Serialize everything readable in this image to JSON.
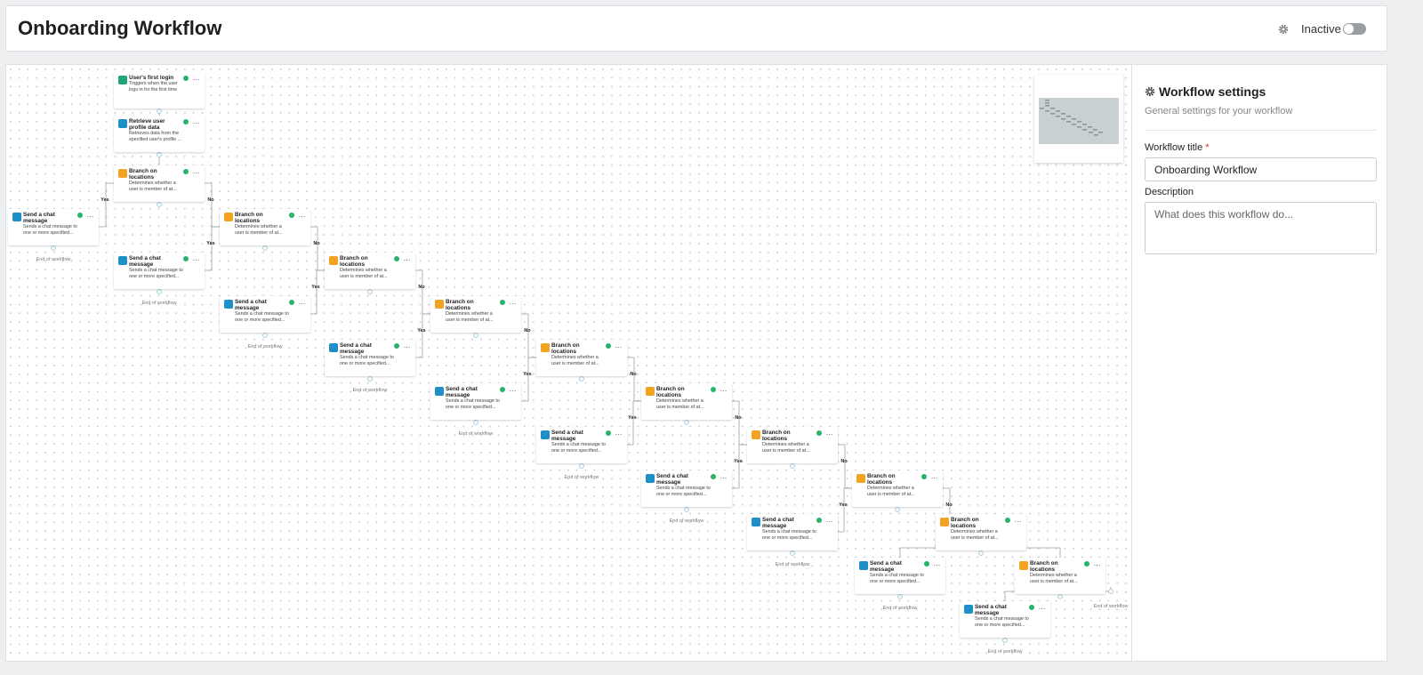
{
  "header": {
    "title": "Onboarding Workflow",
    "status": "Inactive"
  },
  "nodes": [
    {
      "title": "User's first login",
      "description": "Triggers when the user logs in for the first time"
    },
    {
      "title": "Retrieve user profile data",
      "description": "Retrieves data from the specified user's profile ..."
    },
    {
      "title": "Branch on locations",
      "description": "Determines whether a user is member of at..."
    },
    {
      "title": "Send a chat message",
      "description": "Sends a chat message to one or more specified..."
    },
    {
      "title": "Branch on locations",
      "description": "Determines whether a user is member of at..."
    },
    {
      "title": "Send a chat message",
      "description": "Sends a chat message to one or more specified..."
    },
    {
      "title": "Branch on locations",
      "description": "Determines whether a user is member of at..."
    },
    {
      "title": "Send a chat message",
      "description": "Sends a chat message to one or more specified..."
    },
    {
      "title": "Branch on locations",
      "description": "Determines whether a user is member of at..."
    },
    {
      "title": "Send a chat message",
      "description": "Sends a chat message to one or more specified..."
    },
    {
      "title": "Branch on locations",
      "description": "Determines whether a user is member of at..."
    },
    {
      "title": "Send a chat message",
      "description": "Sends a chat message to one or more specified..."
    },
    {
      "title": "Branch on locations",
      "description": "Determines whether a user is member of at..."
    },
    {
      "title": "Send a chat message",
      "description": "Sends a chat message to one or more specified..."
    },
    {
      "title": "Branch on locations",
      "description": "Determines whether a user is member of at..."
    },
    {
      "title": "Send a chat message",
      "description": "Sends a chat message to one or more specified..."
    },
    {
      "title": "Branch on locations",
      "description": "Determines whether a user is member of at..."
    },
    {
      "title": "Send a chat message",
      "description": "Sends a chat message to one or more specified..."
    },
    {
      "title": "Branch on locations",
      "description": "Determines whether a user is member of at..."
    },
    {
      "title": "Send a chat message",
      "description": "Sends a chat message to one or more specified..."
    },
    {
      "title": "Branch on locations",
      "description": "Determines whether a user is member of at..."
    },
    {
      "title": "Send a chat message",
      "description": "Sends a chat message to one or more specified..."
    }
  ],
  "edge_labels": [
    "Yes",
    "No",
    "Yes",
    "No",
    "Yes",
    "No",
    "Yes",
    "No",
    "Yes",
    "No",
    "Yes",
    "No",
    "Yes",
    "No",
    "Yes",
    "No",
    "Yes",
    "No",
    "Yes",
    "No"
  ],
  "end_labels": [
    "End of workflow",
    "End of workflow",
    "End of workflow",
    "End of workflow",
    "End of workflow",
    "End of workflow",
    "End of workflow",
    "End of workflow",
    "End of workflow",
    "End of workflow",
    "End of workflow"
  ],
  "settings": {
    "title": "Workflow settings",
    "subtitle": "General settings for your workflow",
    "fields": [
      {
        "label": "Workflow title",
        "required": "*",
        "value": "Onboarding Workflow"
      },
      {
        "label": "Description",
        "placeholder": "What does this workflow do..."
      }
    ]
  }
}
